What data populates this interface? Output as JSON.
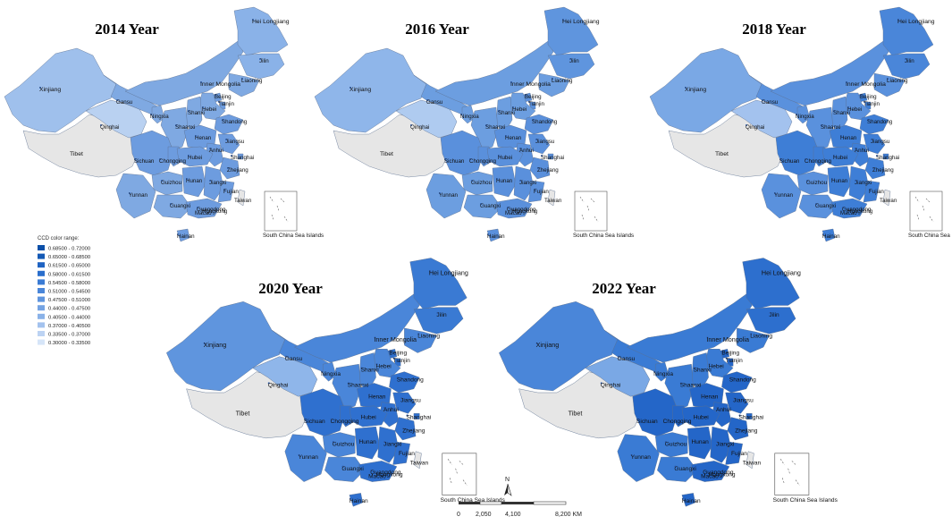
{
  "maps": [
    {
      "title": "2014 Year",
      "year": 2014,
      "base": "#7fa9e2",
      "east": "#6d9cdf",
      "west_light": "#b9d1f1",
      "northeast": "#8ab2e8",
      "xinjiang": "#9fc0ec"
    },
    {
      "title": "2016 Year",
      "year": 2016,
      "base": "#6c9ee0",
      "east": "#5a90dc",
      "west_light": "#afcbf0",
      "northeast": "#5f95de",
      "xinjiang": "#8fb6ea"
    },
    {
      "title": "2018 Year",
      "year": 2018,
      "base": "#5a91dd",
      "east": "#3e7ed6",
      "west_light": "#a3c2ee",
      "northeast": "#4a86d9",
      "xinjiang": "#7aa8e5"
    },
    {
      "title": "2020 Year",
      "year": 2020,
      "base": "#4a86d9",
      "east": "#2f70cf",
      "west_light": "#8fb6ea",
      "northeast": "#3a7ad3",
      "xinjiang": "#5f95de"
    },
    {
      "title": "2022 Year",
      "year": 2022,
      "base": "#3a7bd4",
      "east": "#2466c8",
      "west_light": "#7aa8e5",
      "northeast": "#2d6fce",
      "xinjiang": "#4a86d9"
    }
  ],
  "tibet_color": "#e6e6e6",
  "provinces": {
    "xinjiang": "Xinjiang",
    "tibet": "Tibet",
    "qinghai": "Qinghai",
    "gansu": "Gansu",
    "inner_mongolia": "Inner Mongolia",
    "heilongjiang": "Hei Longjiang",
    "jilin": "Jilin",
    "liaoning": "Liaoning",
    "beijing": "Beijing",
    "tianjin": "Tianjin",
    "hebei": "Hebei",
    "shanxi": "Shanxi",
    "ningxia": "Ningxia",
    "shaanxi": "Shaanxi",
    "shandong": "Shandong",
    "henan": "Henan",
    "jiangsu": "Jiangsu",
    "anhui": "Anhui",
    "shanghai": "Shanghai",
    "sichuan": "Sichuan",
    "chongqing": "Chongqing",
    "hubei": "Hubei",
    "zhejiang": "Zhejiang",
    "hunan": "Hunan",
    "jiangxi": "Jiangxi",
    "guizhou": "Guizhou",
    "fujian": "Fujian",
    "yunnan": "Yunnan",
    "guangxi": "Guangxi",
    "guangdong": "Guangdong",
    "hongkong": "Hongkong",
    "macao": "Macao",
    "taiwan": "Taiwan",
    "hainan": "Hainan"
  },
  "inset_label": "South China Sea Islands",
  "legend": {
    "title": "CCD color range:",
    "items": [
      {
        "label": "0.68500 - 0.72000",
        "color": "#0b4fa8"
      },
      {
        "label": "0.65000 - 0.68500",
        "color": "#1459b5"
      },
      {
        "label": "0.61500 - 0.65000",
        "color": "#1f63c2"
      },
      {
        "label": "0.58000 - 0.61500",
        "color": "#2a6ecc"
      },
      {
        "label": "0.54500 - 0.58000",
        "color": "#3a7bd4"
      },
      {
        "label": "0.51000 - 0.54500",
        "color": "#4a86d9"
      },
      {
        "label": "0.47500 - 0.51000",
        "color": "#5f95de"
      },
      {
        "label": "0.44000 - 0.47500",
        "color": "#74a3e3"
      },
      {
        "label": "0.40500 - 0.44000",
        "color": "#8ab2e8"
      },
      {
        "label": "0.37000 - 0.40500",
        "color": "#a3c2ee"
      },
      {
        "label": "0.33500 - 0.37000",
        "color": "#bcd3f3"
      },
      {
        "label": "0.30000 - 0.33500",
        "color": "#d6e5f8"
      }
    ]
  },
  "scale": {
    "ticks": [
      "0",
      "2,050",
      "4,100",
      "8,200 KM"
    ]
  },
  "north": "N"
}
